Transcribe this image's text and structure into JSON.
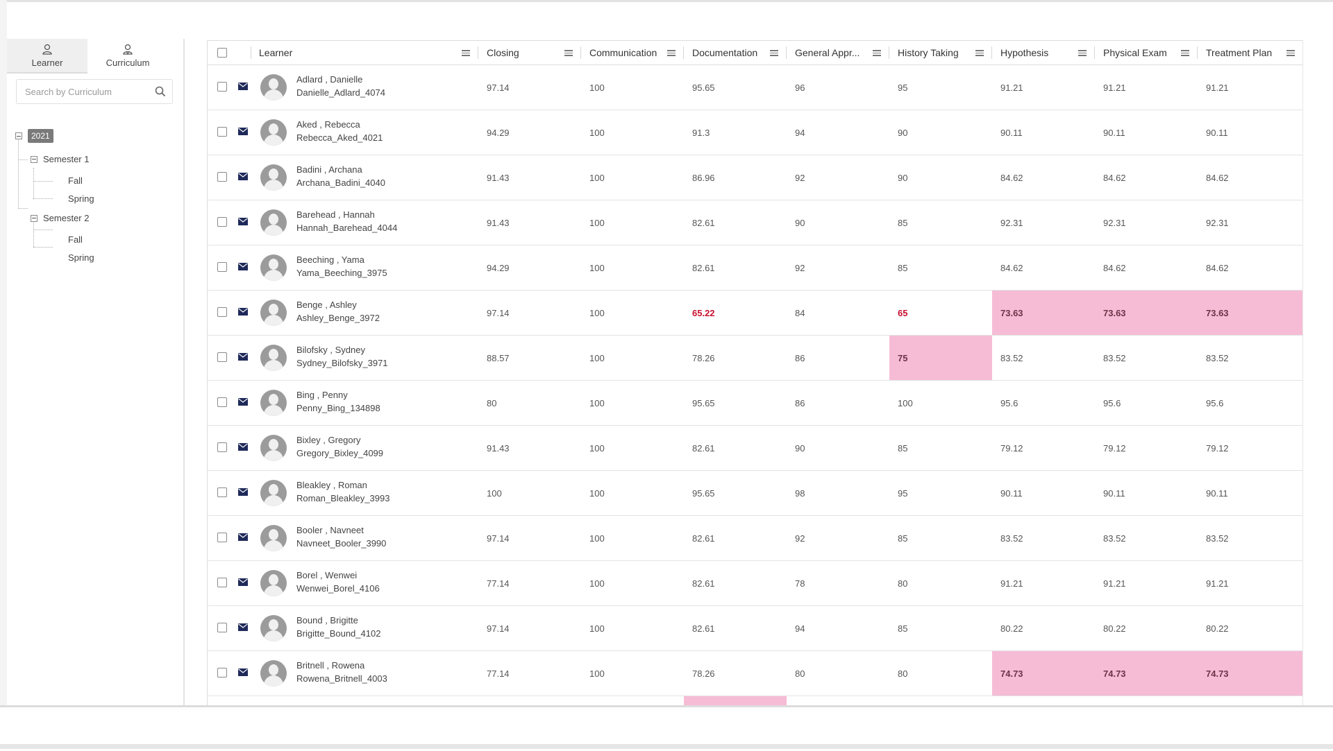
{
  "sidebar": {
    "tabs": [
      {
        "label": "Learner",
        "icon": "person-icon"
      },
      {
        "label": "Curriculum",
        "icon": "curriculum-person-icon"
      }
    ],
    "search_placeholder": "Search by Curriculum",
    "tree": {
      "year": "2021",
      "semesters": [
        {
          "label": "Semester 1",
          "terms": [
            "Fall",
            "Spring"
          ]
        },
        {
          "label": "Semester 2",
          "terms": [
            "Fall",
            "Spring"
          ]
        }
      ]
    }
  },
  "grid": {
    "columns": [
      "Learner",
      "Closing",
      "Communication",
      "Documentation",
      "General Appr...",
      "History Taking",
      "Hypothesis",
      "Physical Exam",
      "Treatment Plan"
    ],
    "highlight_color": "#f6bcd6",
    "alert_text_color": "#c8102e",
    "mail_icon_color": "#1f2a5a",
    "rows": [
      {
        "name": "Adlard , Danielle",
        "username": "Danielle_Adlard_4074",
        "scores": [
          "97.14",
          "100",
          "95.65",
          "96",
          "95",
          "91.21",
          "91.21",
          "91.21"
        ],
        "highlight": [],
        "red": []
      },
      {
        "name": "Aked , Rebecca",
        "username": "Rebecca_Aked_4021",
        "scores": [
          "94.29",
          "100",
          "91.3",
          "94",
          "90",
          "90.11",
          "90.11",
          "90.11"
        ],
        "highlight": [],
        "red": []
      },
      {
        "name": "Badini , Archana",
        "username": "Archana_Badini_4040",
        "scores": [
          "91.43",
          "100",
          "86.96",
          "92",
          "90",
          "84.62",
          "84.62",
          "84.62"
        ],
        "highlight": [],
        "red": []
      },
      {
        "name": "Barehead , Hannah",
        "username": "Hannah_Barehead_4044",
        "scores": [
          "91.43",
          "100",
          "82.61",
          "90",
          "85",
          "92.31",
          "92.31",
          "92.31"
        ],
        "highlight": [],
        "red": []
      },
      {
        "name": "Beeching , Yama",
        "username": "Yama_Beeching_3975",
        "scores": [
          "94.29",
          "100",
          "82.61",
          "92",
          "85",
          "84.62",
          "84.62",
          "84.62"
        ],
        "highlight": [],
        "red": []
      },
      {
        "name": "Benge , Ashley",
        "username": "Ashley_Benge_3972",
        "scores": [
          "97.14",
          "100",
          "65.22",
          "84",
          "65",
          "73.63",
          "73.63",
          "73.63"
        ],
        "highlight": [
          5,
          6,
          7
        ],
        "red": [
          2,
          4
        ]
      },
      {
        "name": "Bilofsky , Sydney",
        "username": "Sydney_Bilofsky_3971",
        "scores": [
          "88.57",
          "100",
          "78.26",
          "86",
          "75",
          "83.52",
          "83.52",
          "83.52"
        ],
        "highlight": [
          4
        ],
        "red": []
      },
      {
        "name": "Bing , Penny",
        "username": "Penny_Bing_134898",
        "scores": [
          "80",
          "100",
          "95.65",
          "86",
          "100",
          "95.6",
          "95.6",
          "95.6"
        ],
        "highlight": [],
        "red": []
      },
      {
        "name": "Bixley , Gregory",
        "username": "Gregory_Bixley_4099",
        "scores": [
          "91.43",
          "100",
          "82.61",
          "90",
          "85",
          "79.12",
          "79.12",
          "79.12"
        ],
        "highlight": [],
        "red": []
      },
      {
        "name": "Bleakley , Roman",
        "username": "Roman_Bleakley_3993",
        "scores": [
          "100",
          "100",
          "95.65",
          "98",
          "95",
          "90.11",
          "90.11",
          "90.11"
        ],
        "highlight": [],
        "red": []
      },
      {
        "name": "Booler , Navneet",
        "username": "Navneet_Booler_3990",
        "scores": [
          "97.14",
          "100",
          "82.61",
          "92",
          "85",
          "83.52",
          "83.52",
          "83.52"
        ],
        "highlight": [],
        "red": []
      },
      {
        "name": "Borel , Wenwei",
        "username": "Wenwei_Borel_4106",
        "scores": [
          "77.14",
          "100",
          "82.61",
          "78",
          "80",
          "91.21",
          "91.21",
          "91.21"
        ],
        "highlight": [],
        "red": []
      },
      {
        "name": "Bound , Brigitte",
        "username": "Brigitte_Bound_4102",
        "scores": [
          "97.14",
          "100",
          "82.61",
          "94",
          "85",
          "80.22",
          "80.22",
          "80.22"
        ],
        "highlight": [],
        "red": []
      },
      {
        "name": "Britnell , Rowena",
        "username": "Rowena_Britnell_4003",
        "scores": [
          "77.14",
          "100",
          "78.26",
          "80",
          "80",
          "74.73",
          "74.73",
          "74.73"
        ],
        "highlight": [
          5,
          6,
          7
        ],
        "red": []
      },
      {
        "name": "",
        "username": "",
        "scores": [
          "",
          "",
          "",
          "",
          "",
          "",
          "",
          ""
        ],
        "highlight": [
          2
        ],
        "red": []
      }
    ]
  }
}
